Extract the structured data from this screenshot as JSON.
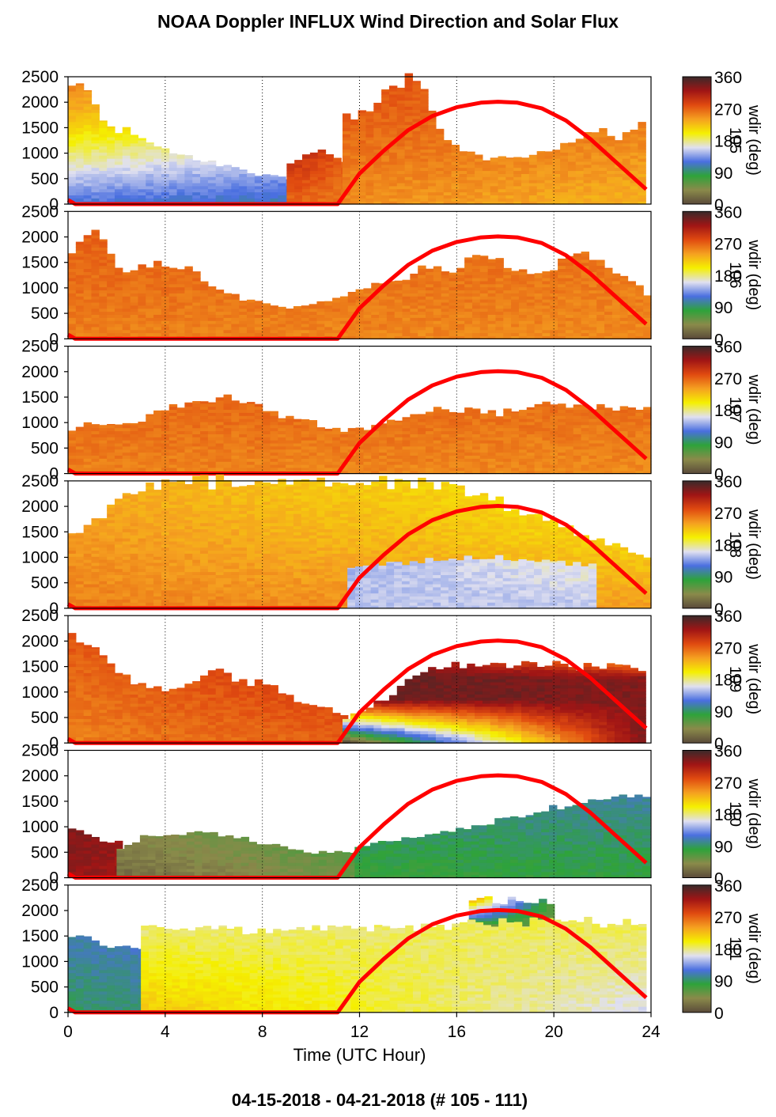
{
  "chart_data": {
    "type": "heatmap",
    "title": "NOAA Doppler INFLUX Wind Direction and Solar Flux",
    "subtitle": "04-15-2018 - 04-21-2018   (# 105 - 111)",
    "xlabel": "Time (UTC Hour)",
    "xlim": [
      0,
      24
    ],
    "xticks": [
      0,
      4,
      8,
      12,
      16,
      20,
      24
    ],
    "ylim": [
      0,
      2500
    ],
    "yticks": [
      0,
      500,
      1000,
      1500,
      2000,
      2500
    ],
    "grid": "vertical dotted lines at 4, 8, 12, 16, 20, 24",
    "colorbar": {
      "label": "wdir (deg)",
      "ticks": [
        0,
        90,
        180,
        270,
        360
      ],
      "colors": [
        "#5a4a3a",
        "#8a8a4a",
        "#2ea33a",
        "#4a6fe0",
        "#e0e0f0",
        "#f5f000",
        "#f5a020",
        "#e04a10",
        "#a01515",
        "#3a2a2a"
      ]
    },
    "solar_flux_curve": {
      "color": "#ff0000",
      "shape": "zero before ~11.1 UTC, peaks ~2000 near 17.7 UTC, ~300 at 23.8 UTC",
      "points": [
        [
          0,
          80
        ],
        [
          0.3,
          0
        ],
        [
          11.1,
          0
        ],
        [
          12,
          600
        ],
        [
          13,
          1050
        ],
        [
          14,
          1450
        ],
        [
          15,
          1730
        ],
        [
          16,
          1900
        ],
        [
          17,
          1990
        ],
        [
          17.7,
          2010
        ],
        [
          18.5,
          1990
        ],
        [
          19.5,
          1880
        ],
        [
          20.5,
          1640
        ],
        [
          21.5,
          1280
        ],
        [
          22.5,
          850
        ],
        [
          23.8,
          290
        ]
      ]
    },
    "panels": [
      {
        "day_label": "105",
        "layers": [
          {
            "start": 0,
            "end": 9,
            "tops": [
              2500,
              2100,
              1550,
              1450,
              1200,
              1100,
              1000,
              900,
              800,
              750,
              600,
              550,
              500
            ],
            "from": [
              120,
              160,
              200,
              235,
              260
            ],
            "to": [
              110,
              170,
              215
            ]
          },
          {
            "start": 9,
            "end": 11.3,
            "tops": [
              800,
              900,
              1000,
              1100,
              1000,
              900,
              800
            ],
            "from": [
              265,
              300,
              330,
              345
            ],
            "to": [
              260,
              275,
              290
            ]
          },
          {
            "start": 11.3,
            "end": 23.7,
            "tops": [
              1700,
              1850,
              2000,
              2350,
              2500,
              2200,
              1400,
              1100,
              1000,
              900,
              1000,
              850,
              1000,
              1100,
              1200,
              1400,
              1500,
              1200,
              1500,
              1600
            ],
            "from": [
              250,
              265,
              280
            ],
            "to": [
              230,
              250,
              265
            ]
          }
        ]
      },
      {
        "day_label": "106",
        "layers": [
          {
            "start": 0,
            "end": 23.7,
            "tops": [
              1800,
              2100,
              1300,
              1500,
              1500,
              1400,
              1000,
              800,
              700,
              600,
              700,
              800,
              1000,
              1100,
              1200,
              1500,
              1300,
              1800,
              1500,
              1300,
              1400,
              1800,
              1500,
              1300,
              900
            ],
            "from": [
              255,
              265,
              275
            ],
            "to": [
              250,
              258,
              265
            ]
          }
        ]
      },
      {
        "day_label": "107",
        "layers": [
          {
            "start": 0,
            "end": 23.7,
            "tops": [
              900,
              1000,
              1000,
              1100,
              1300,
              1500,
              1500,
              1400,
              1200,
              1100,
              950,
              850,
              900,
              1100,
              1250,
              1300,
              1250,
              1200,
              1300,
              1350,
              1350,
              1300,
              1300,
              1250
            ],
            "from": [
              255,
              265,
              275
            ],
            "to": [
              250,
              262,
              300
            ]
          }
        ]
      },
      {
        "day_label": "108",
        "layers": [
          {
            "start": 0,
            "end": 11.5,
            "tops": [
              300,
              350,
              400,
              450,
              500,
              550,
              600,
              650,
              700,
              750,
              800,
              850
            ],
            "from": [
              20,
              10,
              40,
              90,
              110
            ],
            "to": [
              90,
              110,
              100
            ]
          },
          {
            "start": 0,
            "end": 11.5,
            "tops": [
              1100,
              1100,
              1000,
              1000,
              950,
              900,
              850,
              850,
              850,
              900,
              950,
              1000
            ],
            "from": [
              260,
              280,
              320,
              340
            ],
            "to": [
              280,
              300,
              320
            ]
          },
          {
            "start": 0,
            "end": 23.7,
            "tops": [
              1500,
              1800,
              2200,
              2500,
              2500,
              2500,
              2500,
              2500,
              2500,
              2500,
              2500,
              2500,
              2500,
              2500,
              2400,
              2300,
              2000,
              1800,
              1600,
              1400,
              1200,
              1000
            ],
            "from": [
              255,
              245,
              235
            ],
            "to": [
              240,
              215,
              200
            ]
          },
          {
            "start": 11.5,
            "end": 21.5,
            "tops": [
              800,
              850,
              900,
              950,
              1000,
              1000,
              1000,
              950,
              900,
              850
            ],
            "from": [
              150,
              145,
              160,
              175
            ],
            "to": [
              150,
              175,
              190
            ]
          }
        ]
      },
      {
        "day_label": "109",
        "layers": [
          {
            "start": 0,
            "end": 11.3,
            "tops": [
              2100,
              2000,
              1400,
              1200,
              1100,
              1000,
              1300,
              1400,
              1200,
              1200,
              1000,
              800,
              700,
              500
            ],
            "from": [
              255,
              265,
              280
            ],
            "to": [
              270,
              290,
              310
            ]
          },
          {
            "start": 11.3,
            "end": 23.7,
            "tops": [
              500,
              700,
              900,
              1200,
              1500,
              1550,
              1550,
              1550,
              1550,
              1550,
              1550,
              1550,
              1500,
              1550,
              1500,
              1400
            ],
            "from": [
              10,
              340,
              350,
              0
            ],
            "to": [
              340,
              330,
              5
            ]
          }
        ]
      },
      {
        "day_label": "110",
        "layers": [
          {
            "start": 0,
            "end": 2,
            "tops": [
              950,
              850,
              750,
              700
            ],
            "from": [
              325,
              335,
              345
            ],
            "to": [
              320,
              330,
              340
            ]
          },
          {
            "start": 2,
            "end": 11.8,
            "tops": [
              600,
              800,
              850,
              900,
              900,
              850,
              750,
              650,
              550,
              500,
              500,
              500
            ],
            "from": [
              20,
              50,
              70
            ],
            "to": [
              55,
              75,
              80
            ]
          },
          {
            "start": 11.8,
            "end": 23.7,
            "tops": [
              600,
              700,
              800,
              850,
              900,
              1000,
              1100,
              1200,
              1300,
              1400,
              1500,
              1550,
              1600,
              1600
            ],
            "from": [
              75,
              95,
              110
            ],
            "to": [
              80,
              100,
              115
            ]
          }
        ]
      },
      {
        "day_label": "111",
        "layers": [
          {
            "start": 0,
            "end": 16.4,
            "tops": [
              1500,
              1400,
              1300,
              1200,
              1200,
              1150,
              1150,
              1150,
              1100,
              1100,
              1100,
              1100,
              1100,
              1150,
              1200,
              1250
            ],
            "from": [
              90,
              105,
              125
            ],
            "to": [
              120,
              140,
              155
            ]
          },
          {
            "start": 16.4,
            "end": 23.7,
            "tops": [
              1300,
              1350,
              1250,
              1200,
              1150,
              1200,
              1250,
              1300,
              1600
            ],
            "from": [
              105,
              115,
              125
            ],
            "to": [
              105,
              115,
              125
            ]
          },
          {
            "start": 16.5,
            "end": 20,
            "tops": [
              2200,
              2250,
              2200,
              2100
            ],
            "from": [
              15,
              40,
              60,
              330
            ],
            "to": [
              20,
              40,
              60
            ]
          },
          {
            "start": 3,
            "end": 23.7,
            "tops": [
              1650,
              1650,
              1650,
              1650,
              1650,
              1650,
              1700,
              1700,
              1700,
              1700,
              1750,
              1800,
              1800,
              1800,
              1800,
              1750,
              1750
            ],
            "from": [
              220,
              200,
              180,
              160
            ],
            "to": [
              160,
              180,
              200
            ]
          }
        ]
      }
    ]
  }
}
